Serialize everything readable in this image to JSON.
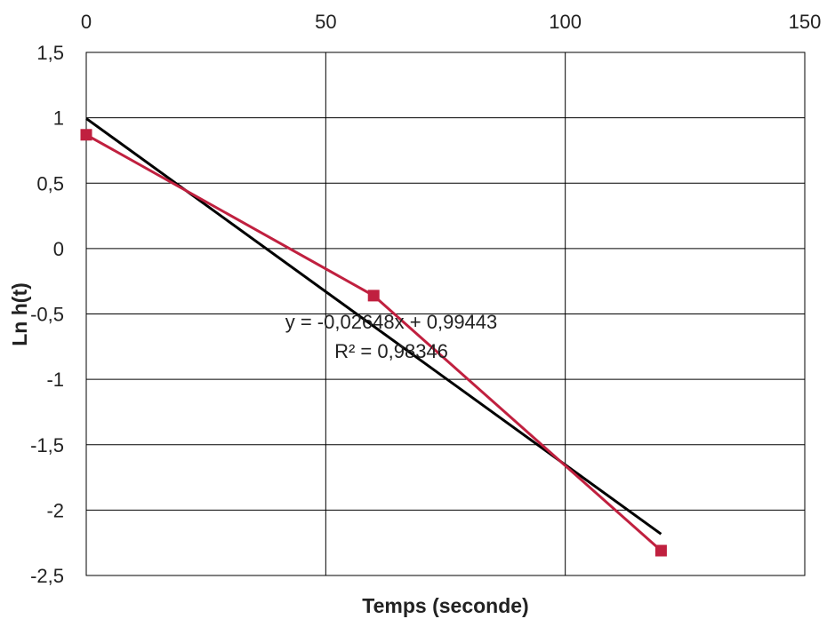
{
  "chart_data": {
    "type": "line",
    "title": "",
    "xlabel": "Temps (seconde)",
    "ylabel": "Ln h(t)",
    "xlim": [
      0,
      150
    ],
    "ylim": [
      -2.5,
      1.5
    ],
    "x_ticks": [
      0,
      50,
      100,
      150
    ],
    "x_tick_labels": [
      "0",
      "50",
      "100",
      "150"
    ],
    "x_axis_position": "top",
    "y_ticks": [
      1.5,
      1,
      0.5,
      0,
      -0.5,
      -1,
      -1.5,
      -2,
      -2.5
    ],
    "y_tick_labels": [
      "1,5",
      "1",
      "0,5",
      "0",
      "-0,5",
      "-1",
      "-1,5",
      "-2",
      "-2,5"
    ],
    "grid": true,
    "series": [
      {
        "color": "#c0203f",
        "marker": "square",
        "x": [
          0,
          60,
          120
        ],
        "y": [
          0.87,
          -0.36,
          -2.31
        ]
      }
    ],
    "trendline": {
      "type": "linear",
      "color": "#000000",
      "slope": -0.02648,
      "intercept": 0.99443,
      "x_range": [
        0,
        120
      ],
      "equation_label": "y = -0,02648x + 0,99443",
      "r2_label": "R² = 0,98346"
    }
  }
}
